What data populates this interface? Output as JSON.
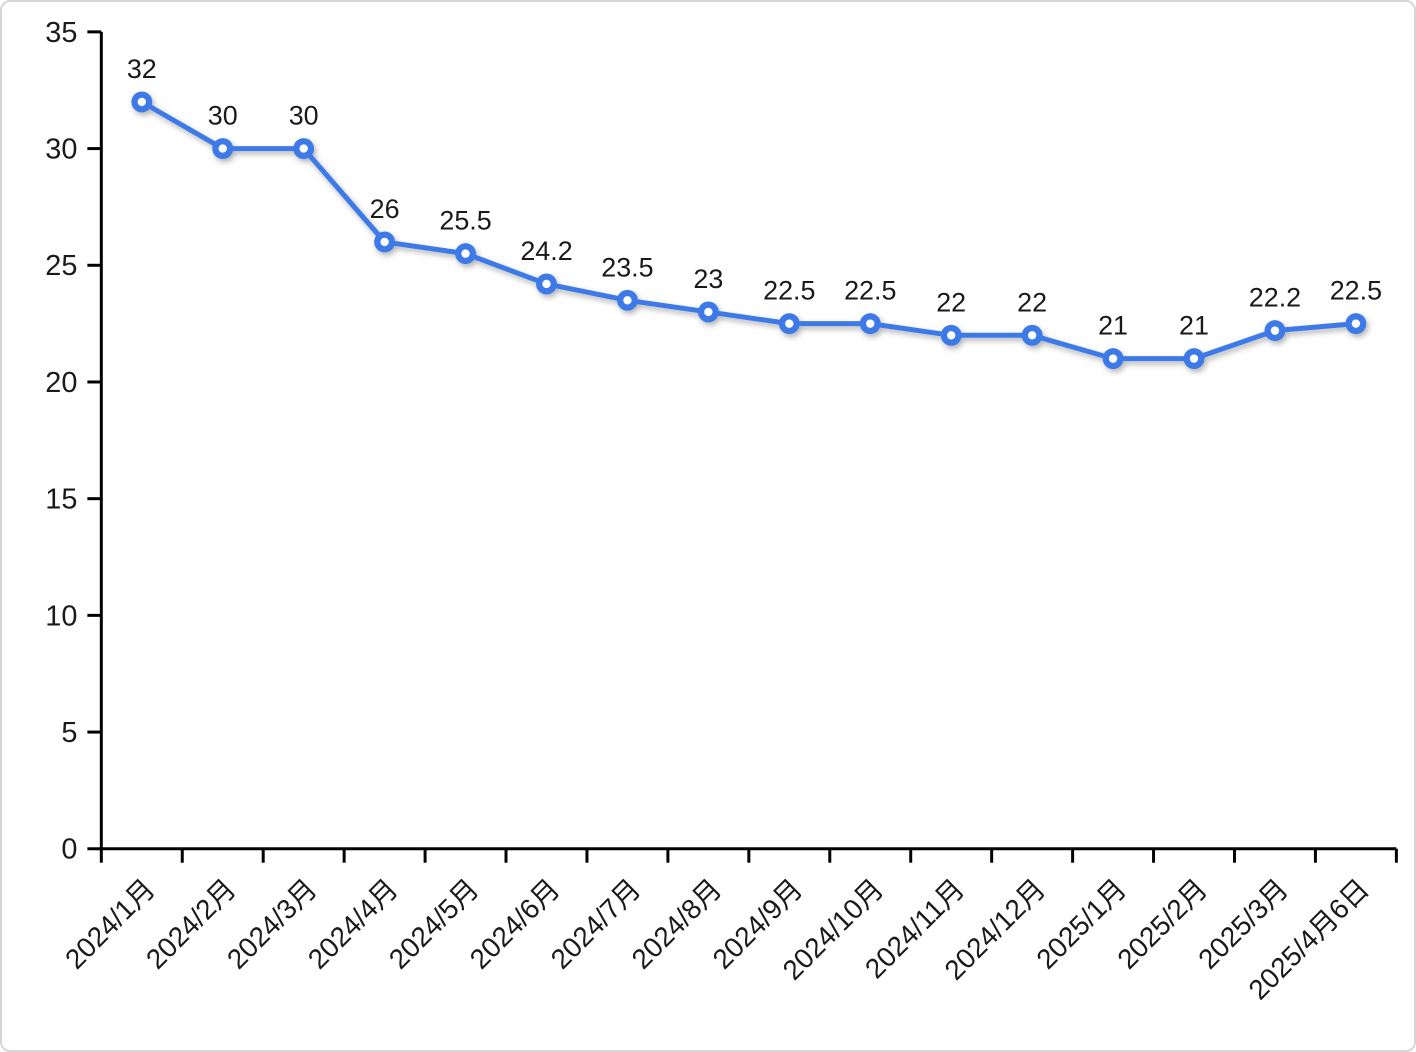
{
  "chart_data": {
    "type": "line",
    "categories": [
      "2024/1月",
      "2024/2月",
      "2024/3月",
      "2024/4月",
      "2024/5月",
      "2024/6月",
      "2024/7月",
      "2024/8月",
      "2024/9月",
      "2024/10月",
      "2024/11月",
      "2024/12月",
      "2025/1月",
      "2025/2月",
      "2025/3月",
      "2025/4月6日"
    ],
    "series": [
      {
        "name": "value",
        "values": [
          32,
          30,
          30,
          26,
          25.5,
          24.2,
          23.5,
          23,
          22.5,
          22.5,
          22,
          22,
          21,
          21,
          22.2,
          22.5
        ]
      }
    ],
    "data_labels": [
      "32",
      "30",
      "30",
      "26",
      "25.5",
      "24.2",
      "23.5",
      "23",
      "22.5",
      "22.5",
      "22",
      "22",
      "21",
      "21",
      "22.2",
      "22.5"
    ],
    "ylim": [
      0,
      35
    ],
    "yticks": [
      0,
      5,
      10,
      15,
      20,
      25,
      30,
      35
    ],
    "grid": false,
    "legend": "none",
    "marker": "circle-with-white-dot",
    "colors": {
      "line": "#3D7AE8",
      "marker_fill": "#3D7AE8",
      "marker_center": "#FFFFFF",
      "axis": "#000000",
      "text": "#1A1A1A"
    }
  }
}
